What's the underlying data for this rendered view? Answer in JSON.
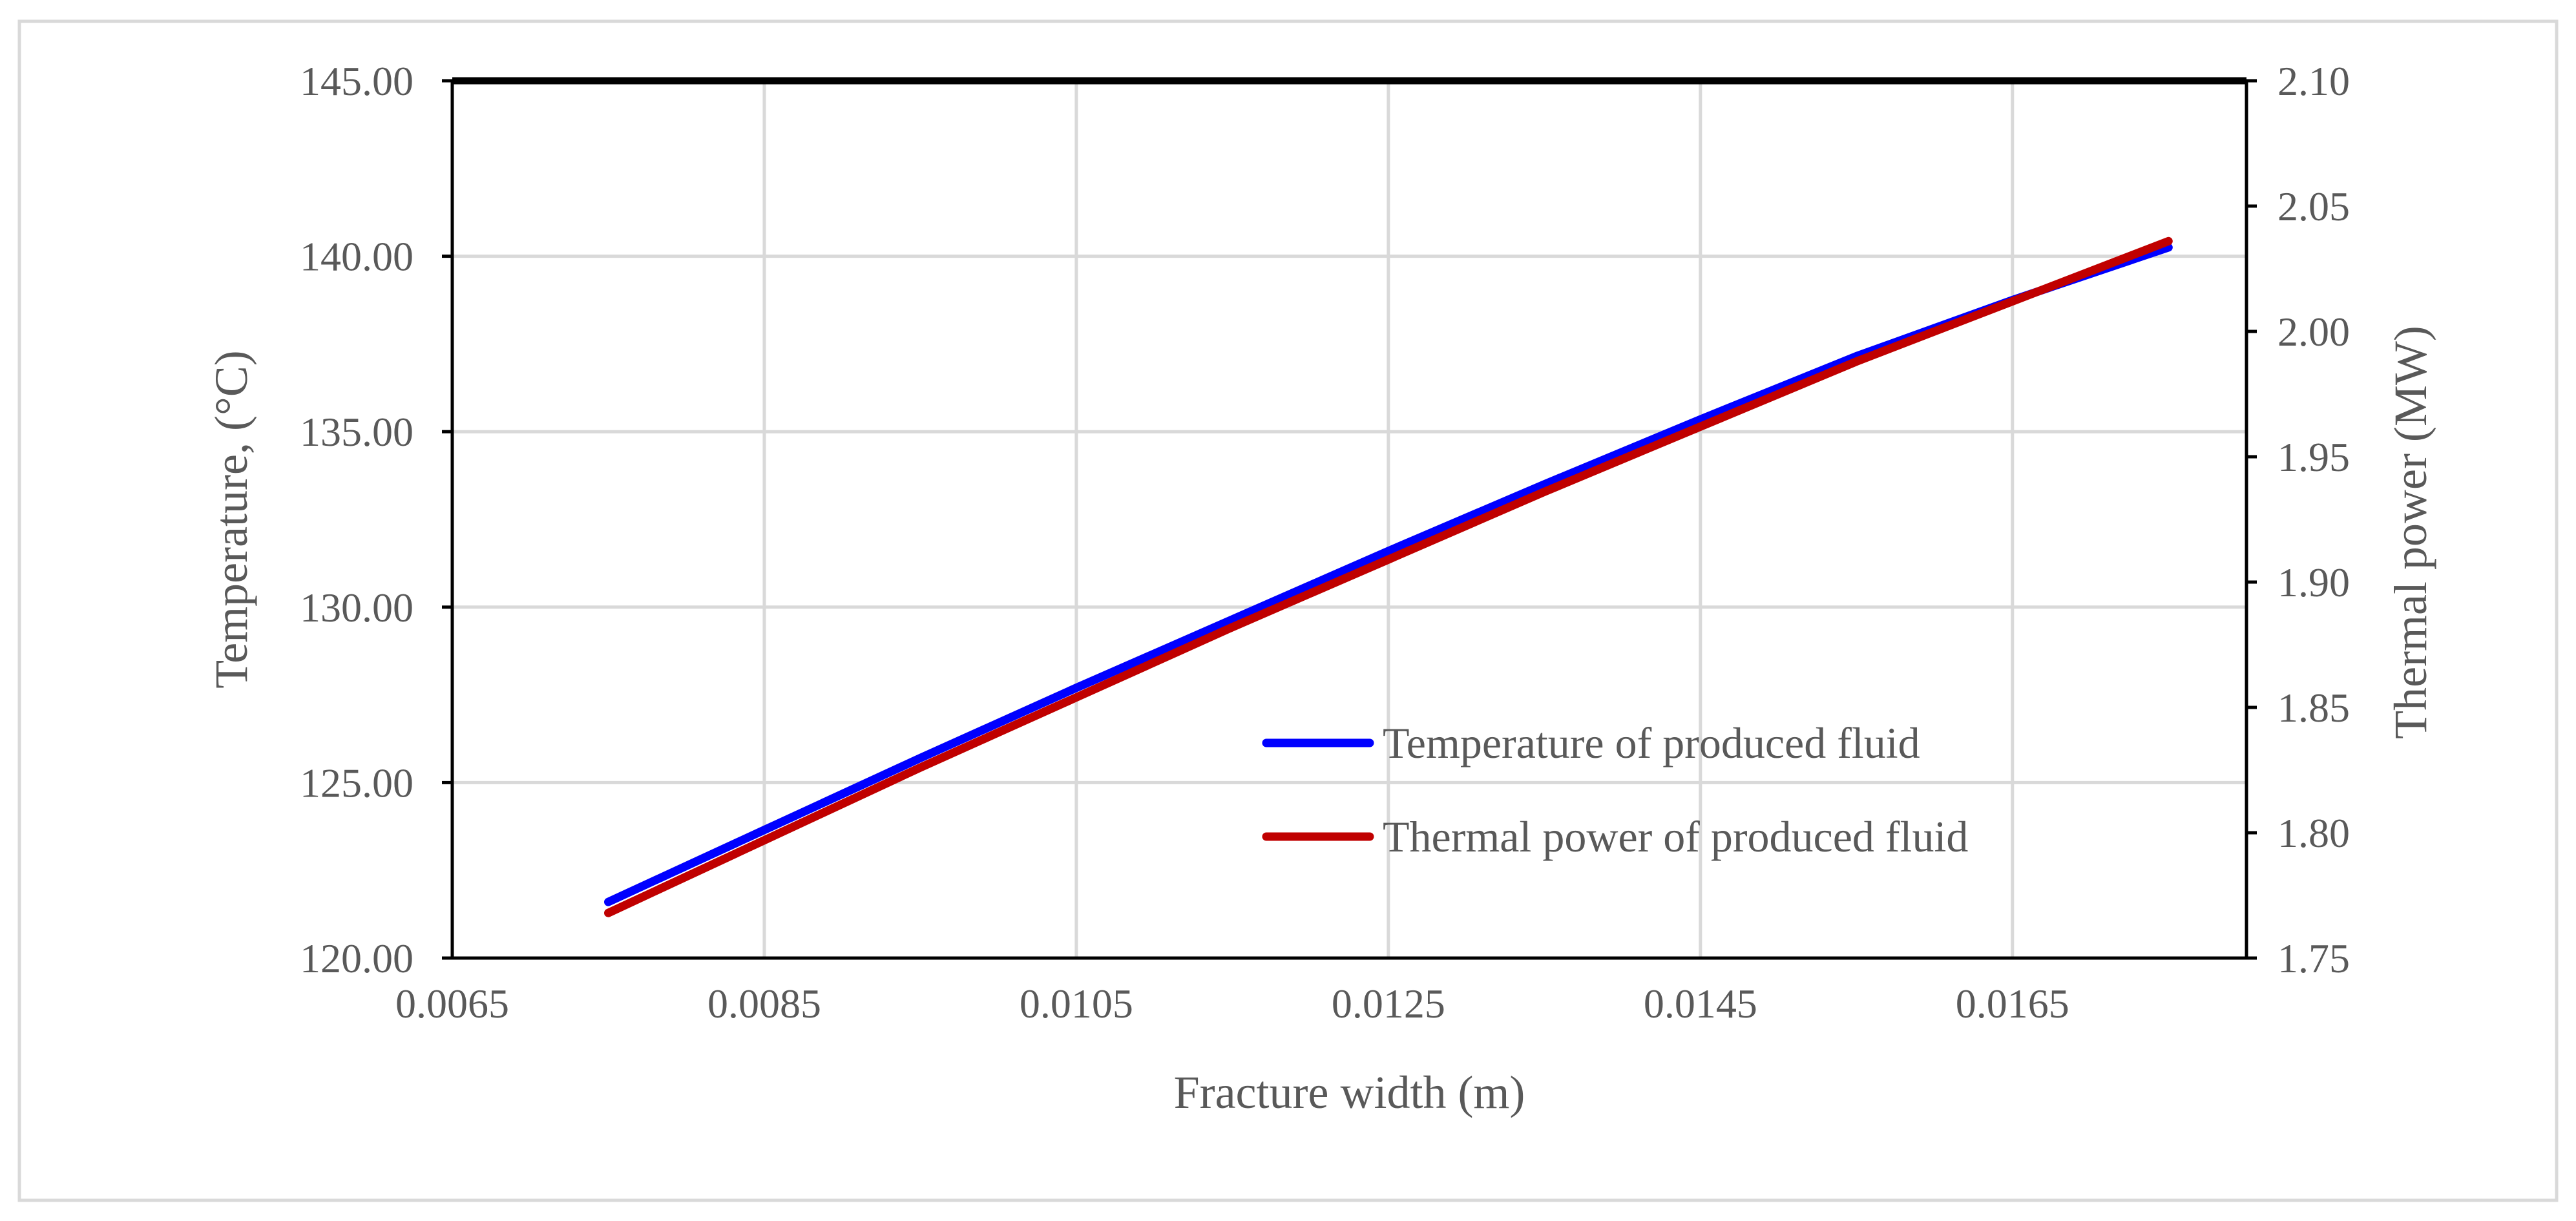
{
  "chart_data": {
    "type": "line",
    "title": "",
    "xlabel": "Fracture width (m)",
    "ylabel_left": "Temperature, (°C)",
    "ylabel_right": "Thermal power (MW)",
    "xlim": [
      0.0065,
      0.018
    ],
    "ylim_left": [
      120,
      145
    ],
    "ylim_right": [
      1.75,
      2.1
    ],
    "x_ticks": [
      "0.0065",
      "0.0085",
      "0.0105",
      "0.0125",
      "0.0145",
      "0.0165"
    ],
    "y_ticks_left": [
      "120.00",
      "125.00",
      "130.00",
      "135.00",
      "140.00",
      "145.00"
    ],
    "y_ticks_right": [
      "1.75",
      "1.80",
      "1.85",
      "1.90",
      "1.95",
      "2.00",
      "2.05",
      "2.10"
    ],
    "grid": true,
    "legend_position": "bottom-right",
    "series": [
      {
        "name": "Temperature of produced fluid",
        "axis": "left",
        "color": "#0000FF",
        "x": [
          0.0075,
          0.0085,
          0.0095,
          0.0105,
          0.0115,
          0.0125,
          0.0135,
          0.0145,
          0.0155,
          0.0165,
          0.0175
        ],
        "y": [
          121.6,
          123.65,
          125.7,
          127.7,
          129.65,
          131.6,
          133.5,
          135.35,
          137.15,
          138.75,
          140.25
        ]
      },
      {
        "name": "Thermal power of produced fluid",
        "axis": "right",
        "color": "#C00000",
        "x": [
          0.0075,
          0.0085,
          0.0095,
          0.0105,
          0.0115,
          0.0125,
          0.0135,
          0.0145,
          0.0155,
          0.0165,
          0.0175
        ],
        "y": [
          1.768,
          1.797,
          1.826,
          1.854,
          1.882,
          1.909,
          1.936,
          1.962,
          1.988,
          2.012,
          2.036
        ]
      }
    ]
  }
}
